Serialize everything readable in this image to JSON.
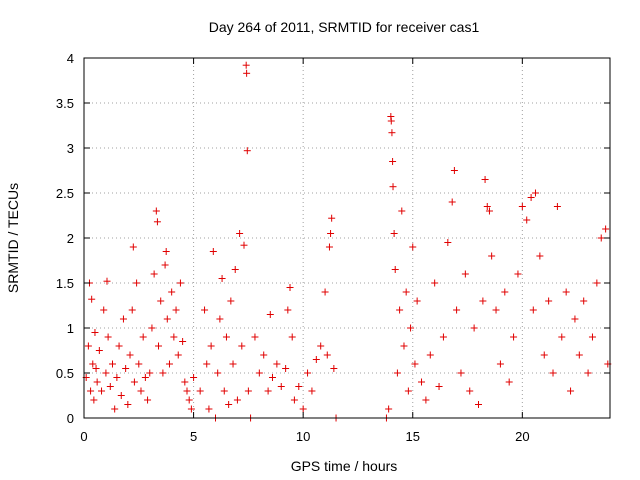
{
  "chart_data": {
    "type": "scatter",
    "title": "Day 264 of 2011, SRMTID for receiver cas1",
    "xlabel": "GPS time / hours",
    "ylabel": "SRMTID / TECUs",
    "xlim": [
      0,
      24
    ],
    "ylim": [
      0,
      4
    ],
    "xticks": [
      0,
      5,
      10,
      15,
      20
    ],
    "xtick_labels": [
      "0",
      "5",
      "10",
      "15",
      "20"
    ],
    "yticks": [
      0,
      0.5,
      1,
      1.5,
      2,
      2.5,
      3,
      3.5,
      4
    ],
    "ytick_labels": [
      "0",
      "0.5",
      "1",
      "1.5",
      "2",
      "2.5",
      "3",
      "3.5",
      "4"
    ],
    "grid": true,
    "marker": "+",
    "marker_color": "#e00000",
    "series": [
      {
        "name": "SRMTID",
        "points": [
          [
            0.1,
            0.45
          ],
          [
            0.2,
            0.8
          ],
          [
            0.25,
            1.5
          ],
          [
            0.3,
            0.3
          ],
          [
            0.35,
            1.32
          ],
          [
            0.4,
            0.6
          ],
          [
            0.45,
            0.2
          ],
          [
            0.5,
            0.95
          ],
          [
            0.55,
            0.55
          ],
          [
            0.6,
            0.4
          ],
          [
            0.7,
            0.75
          ],
          [
            0.8,
            0.3
          ],
          [
            0.9,
            1.2
          ],
          [
            1.0,
            0.5
          ],
          [
            1.05,
            1.52
          ],
          [
            1.1,
            0.9
          ],
          [
            1.2,
            0.35
          ],
          [
            1.3,
            0.6
          ],
          [
            1.4,
            0.1
          ],
          [
            1.5,
            0.45
          ],
          [
            1.6,
            0.8
          ],
          [
            1.7,
            0.25
          ],
          [
            1.8,
            1.1
          ],
          [
            1.9,
            0.55
          ],
          [
            2.0,
            0.15
          ],
          [
            2.1,
            0.7
          ],
          [
            2.2,
            1.2
          ],
          [
            2.25,
            1.9
          ],
          [
            2.3,
            0.4
          ],
          [
            2.4,
            1.5
          ],
          [
            2.5,
            0.6
          ],
          [
            2.6,
            0.3
          ],
          [
            2.7,
            0.9
          ],
          [
            2.8,
            0.45
          ],
          [
            2.9,
            0.2
          ],
          [
            3.0,
            0.5
          ],
          [
            3.1,
            1.0
          ],
          [
            3.2,
            1.6
          ],
          [
            3.3,
            2.3
          ],
          [
            3.35,
            2.18
          ],
          [
            3.4,
            0.8
          ],
          [
            3.5,
            1.3
          ],
          [
            3.6,
            0.5
          ],
          [
            3.7,
            1.7
          ],
          [
            3.75,
            1.85
          ],
          [
            3.8,
            1.1
          ],
          [
            3.9,
            0.6
          ],
          [
            4.0,
            1.4
          ],
          [
            4.1,
            0.9
          ],
          [
            4.2,
            1.2
          ],
          [
            4.3,
            0.7
          ],
          [
            4.4,
            1.5
          ],
          [
            4.5,
            0.85
          ],
          [
            4.6,
            0.4
          ],
          [
            4.7,
            0.3
          ],
          [
            4.8,
            0.2
          ],
          [
            4.9,
            0.1
          ],
          [
            5.0,
            0.45
          ],
          [
            5.3,
            0.3
          ],
          [
            5.5,
            1.2
          ],
          [
            5.6,
            0.6
          ],
          [
            5.7,
            0.1
          ],
          [
            5.8,
            0.8
          ],
          [
            5.9,
            1.85
          ],
          [
            6.0,
            0.0
          ],
          [
            6.1,
            0.5
          ],
          [
            6.2,
            1.1
          ],
          [
            6.3,
            1.55
          ],
          [
            6.4,
            0.3
          ],
          [
            6.5,
            0.9
          ],
          [
            6.6,
            0.15
          ],
          [
            6.7,
            1.3
          ],
          [
            6.8,
            0.6
          ],
          [
            6.9,
            1.65
          ],
          [
            7.0,
            0.2
          ],
          [
            7.1,
            2.05
          ],
          [
            7.2,
            0.8
          ],
          [
            7.3,
            1.92
          ],
          [
            7.4,
            3.92
          ],
          [
            7.42,
            3.83
          ],
          [
            7.45,
            2.97
          ],
          [
            7.5,
            0.3
          ],
          [
            7.6,
            0.0
          ],
          [
            7.8,
            0.9
          ],
          [
            8.0,
            0.5
          ],
          [
            8.2,
            0.7
          ],
          [
            8.4,
            0.3
          ],
          [
            8.5,
            1.15
          ],
          [
            8.6,
            0.45
          ],
          [
            8.8,
            0.6
          ],
          [
            9.0,
            0.35
          ],
          [
            9.2,
            0.55
          ],
          [
            9.3,
            1.2
          ],
          [
            9.4,
            1.45
          ],
          [
            9.5,
            0.9
          ],
          [
            9.6,
            0.2
          ],
          [
            9.8,
            0.35
          ],
          [
            10.0,
            0.1
          ],
          [
            10.2,
            0.5
          ],
          [
            10.4,
            0.3
          ],
          [
            10.6,
            0.65
          ],
          [
            10.8,
            0.8
          ],
          [
            11.0,
            1.4
          ],
          [
            11.1,
            0.7
          ],
          [
            11.2,
            1.9
          ],
          [
            11.25,
            2.05
          ],
          [
            11.3,
            2.22
          ],
          [
            11.4,
            0.55
          ],
          [
            11.5,
            0.0
          ],
          [
            13.8,
            0.0
          ],
          [
            13.9,
            0.1
          ],
          [
            14.0,
            3.35
          ],
          [
            14.02,
            3.3
          ],
          [
            14.05,
            3.17
          ],
          [
            14.08,
            2.85
          ],
          [
            14.1,
            2.57
          ],
          [
            14.15,
            2.05
          ],
          [
            14.2,
            1.65
          ],
          [
            14.3,
            0.5
          ],
          [
            14.4,
            1.2
          ],
          [
            14.5,
            2.3
          ],
          [
            14.6,
            0.8
          ],
          [
            14.7,
            1.4
          ],
          [
            14.8,
            0.3
          ],
          [
            14.9,
            1.0
          ],
          [
            15.0,
            1.9
          ],
          [
            15.1,
            0.6
          ],
          [
            15.2,
            1.3
          ],
          [
            15.4,
            0.4
          ],
          [
            15.6,
            0.2
          ],
          [
            15.8,
            0.7
          ],
          [
            16.0,
            1.5
          ],
          [
            16.2,
            0.35
          ],
          [
            16.4,
            0.9
          ],
          [
            16.6,
            1.95
          ],
          [
            16.8,
            2.4
          ],
          [
            16.9,
            2.75
          ],
          [
            17.0,
            1.2
          ],
          [
            17.2,
            0.5
          ],
          [
            17.4,
            1.6
          ],
          [
            17.6,
            0.3
          ],
          [
            17.8,
            1.0
          ],
          [
            18.0,
            0.15
          ],
          [
            18.2,
            1.3
          ],
          [
            18.3,
            2.65
          ],
          [
            18.4,
            2.35
          ],
          [
            18.5,
            2.3
          ],
          [
            18.6,
            1.8
          ],
          [
            18.8,
            1.2
          ],
          [
            19.0,
            0.6
          ],
          [
            19.2,
            1.4
          ],
          [
            19.4,
            0.4
          ],
          [
            19.6,
            0.9
          ],
          [
            19.8,
            1.6
          ],
          [
            20.0,
            2.35
          ],
          [
            20.2,
            2.2
          ],
          [
            20.4,
            2.45
          ],
          [
            20.5,
            1.2
          ],
          [
            20.6,
            2.5
          ],
          [
            20.8,
            1.8
          ],
          [
            21.0,
            0.7
          ],
          [
            21.2,
            1.3
          ],
          [
            21.4,
            0.5
          ],
          [
            21.6,
            2.35
          ],
          [
            21.8,
            0.9
          ],
          [
            22.0,
            1.4
          ],
          [
            22.2,
            0.3
          ],
          [
            22.4,
            1.1
          ],
          [
            22.6,
            0.7
          ],
          [
            22.8,
            1.3
          ],
          [
            23.0,
            0.5
          ],
          [
            23.2,
            0.9
          ],
          [
            23.4,
            1.5
          ],
          [
            23.6,
            2.0
          ],
          [
            23.8,
            2.1
          ],
          [
            23.9,
            0.6
          ]
        ]
      }
    ]
  }
}
